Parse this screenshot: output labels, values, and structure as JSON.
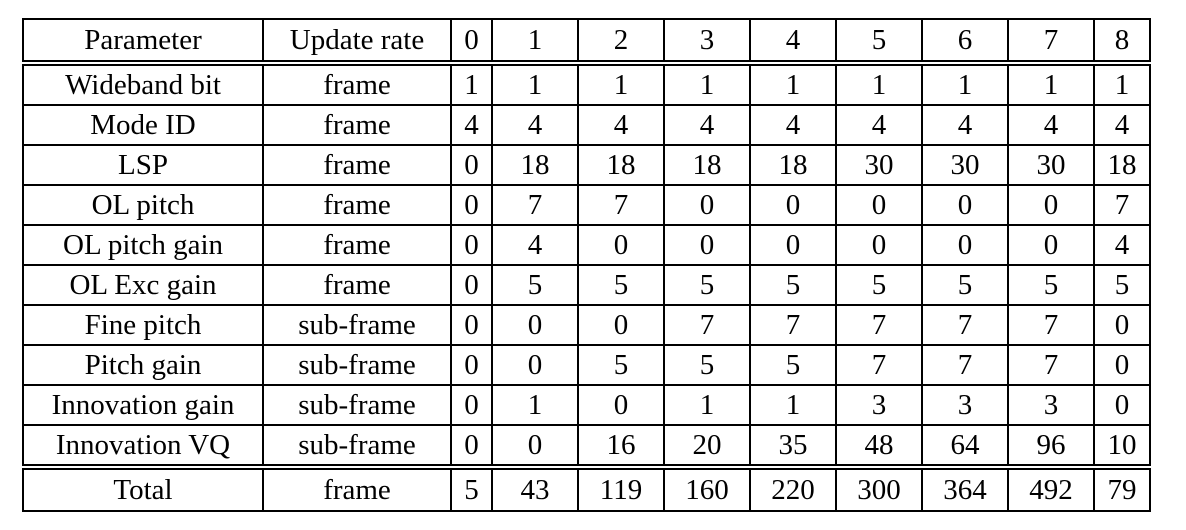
{
  "header": {
    "parameter": "Parameter",
    "update_rate": "Update rate",
    "modes": [
      "0",
      "1",
      "2",
      "3",
      "4",
      "5",
      "6",
      "7",
      "8"
    ]
  },
  "rows": [
    {
      "parameter": "Wideband bit",
      "update_rate": "frame",
      "values": [
        "1",
        "1",
        "1",
        "1",
        "1",
        "1",
        "1",
        "1",
        "1"
      ]
    },
    {
      "parameter": "Mode ID",
      "update_rate": "frame",
      "values": [
        "4",
        "4",
        "4",
        "4",
        "4",
        "4",
        "4",
        "4",
        "4"
      ]
    },
    {
      "parameter": "LSP",
      "update_rate": "frame",
      "values": [
        "0",
        "18",
        "18",
        "18",
        "18",
        "30",
        "30",
        "30",
        "18"
      ]
    },
    {
      "parameter": "OL pitch",
      "update_rate": "frame",
      "values": [
        "0",
        "7",
        "7",
        "0",
        "0",
        "0",
        "0",
        "0",
        "7"
      ]
    },
    {
      "parameter": "OL pitch gain",
      "update_rate": "frame",
      "values": [
        "0",
        "4",
        "0",
        "0",
        "0",
        "0",
        "0",
        "0",
        "4"
      ]
    },
    {
      "parameter": "OL Exc gain",
      "update_rate": "frame",
      "values": [
        "0",
        "5",
        "5",
        "5",
        "5",
        "5",
        "5",
        "5",
        "5"
      ]
    },
    {
      "parameter": "Fine pitch",
      "update_rate": "sub-frame",
      "values": [
        "0",
        "0",
        "0",
        "7",
        "7",
        "7",
        "7",
        "7",
        "0"
      ]
    },
    {
      "parameter": "Pitch gain",
      "update_rate": "sub-frame",
      "values": [
        "0",
        "0",
        "5",
        "5",
        "5",
        "7",
        "7",
        "7",
        "0"
      ]
    },
    {
      "parameter": "Innovation gain",
      "update_rate": "sub-frame",
      "values": [
        "0",
        "1",
        "0",
        "1",
        "1",
        "3",
        "3",
        "3",
        "0"
      ]
    },
    {
      "parameter": "Innovation VQ",
      "update_rate": "sub-frame",
      "values": [
        "0",
        "0",
        "16",
        "20",
        "35",
        "48",
        "64",
        "96",
        "10"
      ]
    }
  ],
  "total": {
    "parameter": "Total",
    "update_rate": "frame",
    "values": [
      "5",
      "43",
      "119",
      "160",
      "220",
      "300",
      "364",
      "492",
      "79"
    ]
  }
}
